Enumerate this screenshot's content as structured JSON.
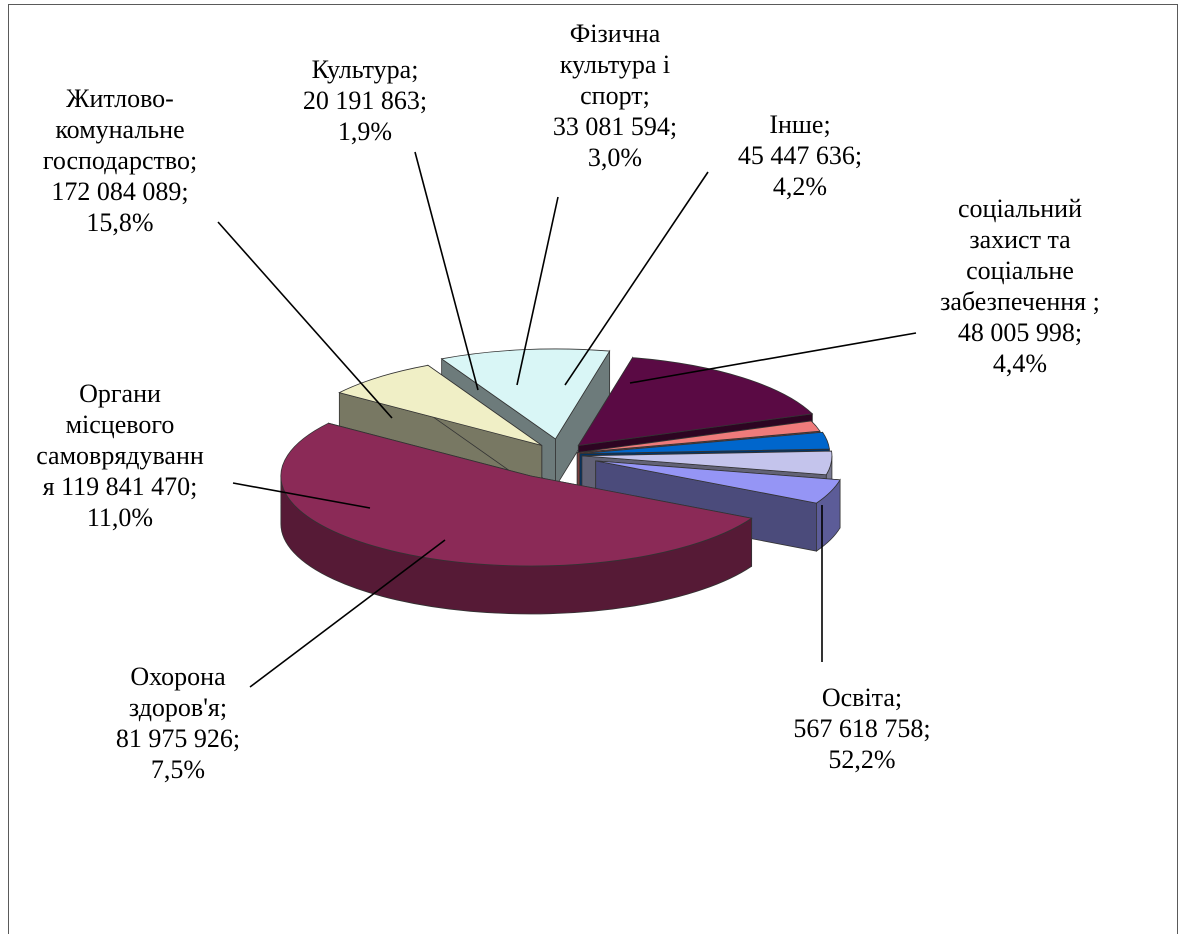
{
  "chart_data": {
    "type": "pie",
    "title": "",
    "slices": [
      {
        "name": "Освіта",
        "value": "567 618 758",
        "percent": "52,2%",
        "lines": [
          "Освіта;",
          "567 618 758;",
          "52,2%"
        ],
        "color": "#8b2a57"
      },
      {
        "name": "Охорона здоров'я",
        "value": "81 975 926",
        "percent": "7,5%",
        "lines": [
          "Охорона",
          "здоров'я;",
          "81 975 926;",
          "7,5%"
        ],
        "color": "#f0efc6"
      },
      {
        "name": "Органи місцевого самоврядування",
        "value": "119 841 470",
        "percent": "11,0%",
        "lines": [
          "Органи",
          "місцевого",
          "самоврядуванн",
          "я 119 841 470;",
          "11,0%"
        ],
        "color": "#d9f6f6"
      },
      {
        "name": "Житлово-комунальне господарство",
        "value": "172 084 089",
        "percent": "15,8%",
        "lines": [
          "Житлово-",
          "комунальне",
          "господарство;",
          "172 084 089;",
          "15,8%"
        ],
        "color": "#5a0a44"
      },
      {
        "name": "Культура",
        "value": "20 191 863",
        "percent": "1,9%",
        "lines": [
          "Культура;",
          "20 191 863;",
          "1,9%"
        ],
        "color": "#ef7b7b"
      },
      {
        "name": "Фізична культура і спорт",
        "value": "33 081 594",
        "percent": "3,0%",
        "lines": [
          "Фізична",
          "культура і",
          "спорт;",
          "33 081 594;",
          "3,0%"
        ],
        "color": "#0066cc"
      },
      {
        "name": "Інше",
        "value": "45 447 636",
        "percent": "4,2%",
        "lines": [
          "Інше;",
          "45 447 636;",
          "4,2%"
        ],
        "color": "#c4c4ec"
      },
      {
        "name": "соціальний захист та соціальне забезпечення",
        "value": "48 005 998",
        "percent": "4,4%",
        "lines": [
          "соціальний",
          "захист та",
          "соціальне",
          "забезпечення ;",
          "48 005 998;",
          "4,4%"
        ],
        "color": "#9595f5"
      }
    ]
  }
}
